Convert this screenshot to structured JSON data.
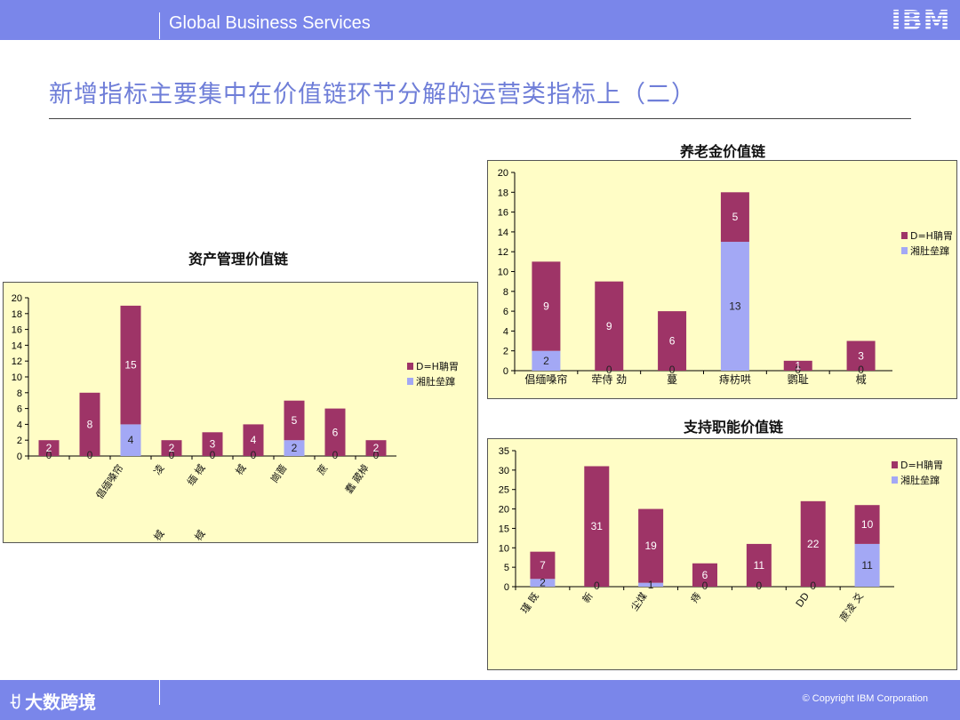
{
  "header": {
    "brand": "Global Business Services",
    "logo": "IBM"
  },
  "slide_title": "新增指标主要集中在价值链环节分解的运营类指标上（二）",
  "footer": {
    "watermark": "大数跨境",
    "watermark_icon": "ꀀ",
    "copyright": "© Copyright IBM Corporation"
  },
  "colors": {
    "bar_bg": "#7A86EA",
    "series_a": "#9E3467",
    "series_b": "#A3A8F5",
    "panel_bg": "#FFFDC6"
  },
  "chart_data": [
    {
      "id": "asset",
      "type": "bar",
      "stacked": true,
      "title": "资产管理价值链",
      "categories": [
        "",
        "",
        "倡缅嗓帘",
        "凌",
        "缅 棫",
        "棫",
        "崗蔷",
        "蔗",
        "蠢 葳棹"
      ],
      "category_lines": [
        [
          ""
        ],
        [
          ""
        ],
        [
          "倡缅嗓帘"
        ],
        [
          "凌",
          "棫"
        ],
        [
          "缅  棫",
          "棫"
        ],
        [
          "棫"
        ],
        [
          "崗蔷"
        ],
        [
          "蔗"
        ],
        [
          "蠢 葳棹"
        ]
      ],
      "series": [
        {
          "name": "湘肚垒蹿",
          "values": [
            0,
            0,
            4,
            0,
            0,
            0,
            2,
            0,
            0
          ]
        },
        {
          "name": "D=H聃胃",
          "values": [
            2,
            8,
            15,
            2,
            3,
            4,
            5,
            6,
            2
          ]
        }
      ],
      "ylim": [
        0,
        20
      ],
      "yticks": [
        0,
        2,
        4,
        6,
        8,
        10,
        12,
        14,
        16,
        18,
        20
      ],
      "legend": "right"
    },
    {
      "id": "pension",
      "type": "bar",
      "stacked": true,
      "title": "养老金价值链",
      "categories": [
        "倡缅嗓帘",
        "荦侍 劲",
        "蔓",
        "痔枋哄",
        "鹦耻",
        "棫"
      ],
      "series": [
        {
          "name": "湘肚垒蹿",
          "values": [
            2,
            0,
            0,
            13,
            0,
            0
          ]
        },
        {
          "name": "D=H聃胃",
          "values": [
            9,
            9,
            6,
            5,
            1,
            3
          ]
        }
      ],
      "ylim": [
        0,
        20
      ],
      "yticks": [
        0,
        2,
        4,
        6,
        8,
        10,
        12,
        14,
        16,
        18,
        20
      ],
      "legend": "right"
    },
    {
      "id": "support",
      "type": "bar",
      "stacked": true,
      "title": "支持职能价值链",
      "categories": [
        "瑾 既",
        "新",
        "尘煤",
        "痔",
        "",
        "DD",
        "蔗凌 爻"
      ],
      "series": [
        {
          "name": "湘肚垒蹿",
          "values": [
            2,
            0,
            1,
            0,
            0,
            0,
            11
          ]
        },
        {
          "name": "D=H聃胃",
          "values": [
            7,
            31,
            19,
            6,
            11,
            22,
            10
          ]
        }
      ],
      "ylim": [
        0,
        35
      ],
      "yticks": [
        0,
        5,
        10,
        15,
        20,
        25,
        30,
        35
      ],
      "legend": "right"
    }
  ]
}
